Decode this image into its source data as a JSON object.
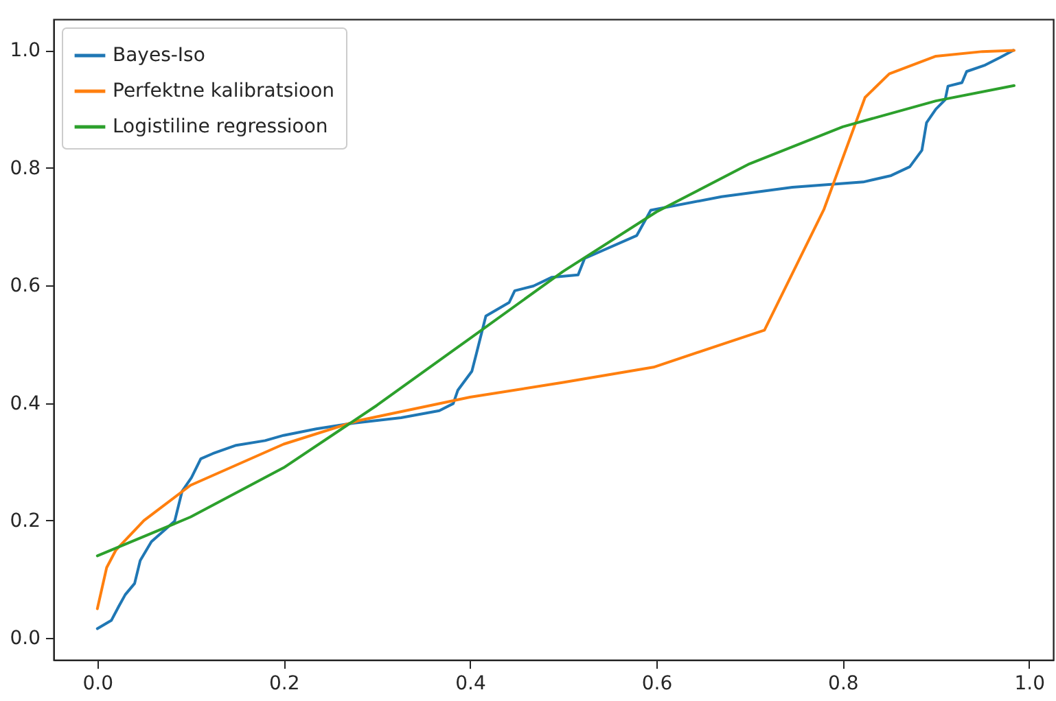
{
  "chart_data": {
    "type": "line",
    "xlim": [
      -0.047,
      1.026
    ],
    "ylim": [
      -0.037,
      1.053
    ],
    "xticks": [
      {
        "value": 0,
        "label": "0.0"
      },
      {
        "value": 0.2,
        "label": "0.2"
      },
      {
        "value": 0.4,
        "label": "0.4"
      },
      {
        "value": 0.6,
        "label": "0.6"
      },
      {
        "value": 0.8,
        "label": "0.8"
      },
      {
        "value": 1,
        "label": "1.0"
      }
    ],
    "yticks": [
      {
        "value": 0,
        "label": "0.0"
      },
      {
        "value": 0.2,
        "label": "0.2"
      },
      {
        "value": 0.4,
        "label": "0.4"
      },
      {
        "value": 0.6,
        "label": "0.6"
      },
      {
        "value": 0.8,
        "label": "0.8"
      },
      {
        "value": 1,
        "label": "1.0"
      }
    ],
    "grid": false,
    "legend": "top left",
    "marker": "none",
    "line_style": "solid",
    "series": [
      {
        "name": "Bayes-Iso",
        "color": "#1f77b4",
        "x": [
          0,
          0.015,
          0.023,
          0.03,
          0.04,
          0.046,
          0.058,
          0.083,
          0.091,
          0.101,
          0.111,
          0.124,
          0.149,
          0.18,
          0.2,
          0.235,
          0.276,
          0.326,
          0.367,
          0.382,
          0.387,
          0.402,
          0.407,
          0.417,
          0.442,
          0.448,
          0.468,
          0.488,
          0.516,
          0.523,
          0.579,
          0.594,
          0.67,
          0.746,
          0.822,
          0.852,
          0.872,
          0.885,
          0.89,
          0.9,
          0.91,
          0.913,
          0.928,
          0.933,
          0.953,
          0.969,
          0.983
        ],
        "values": [
          0.016,
          0.03,
          0.054,
          0.074,
          0.093,
          0.132,
          0.164,
          0.199,
          0.25,
          0.273,
          0.305,
          0.314,
          0.328,
          0.336,
          0.345,
          0.356,
          0.366,
          0.375,
          0.387,
          0.399,
          0.422,
          0.454,
          0.485,
          0.548,
          0.571,
          0.591,
          0.599,
          0.614,
          0.618,
          0.646,
          0.685,
          0.728,
          0.751,
          0.767,
          0.776,
          0.787,
          0.802,
          0.83,
          0.877,
          0.9,
          0.916,
          0.939,
          0.945,
          0.964,
          0.975,
          0.988,
          1.0
        ]
      },
      {
        "name": "Perfektne kalibratsioon",
        "color": "#ff7f0e",
        "x": [
          0,
          0.01,
          0.02,
          0.05,
          0.1,
          0.2,
          0.28,
          0.4,
          0.5,
          0.597,
          0.716,
          0.78,
          0.824,
          0.85,
          0.9,
          0.95,
          0.984
        ],
        "values": [
          0.05,
          0.12,
          0.15,
          0.2,
          0.26,
          0.33,
          0.37,
          0.41,
          0.435,
          0.461,
          0.524,
          0.73,
          0.92,
          0.96,
          0.99,
          0.998,
          1.0
        ]
      },
      {
        "name": "Logistiline regressioon",
        "color": "#2ca02c",
        "x": [
          0,
          0.1,
          0.2,
          0.3,
          0.4,
          0.5,
          0.6,
          0.7,
          0.8,
          0.9,
          0.984
        ],
        "values": [
          0.14,
          0.206,
          0.29,
          0.396,
          0.51,
          0.624,
          0.725,
          0.807,
          0.87,
          0.914,
          0.94
        ]
      }
    ]
  }
}
